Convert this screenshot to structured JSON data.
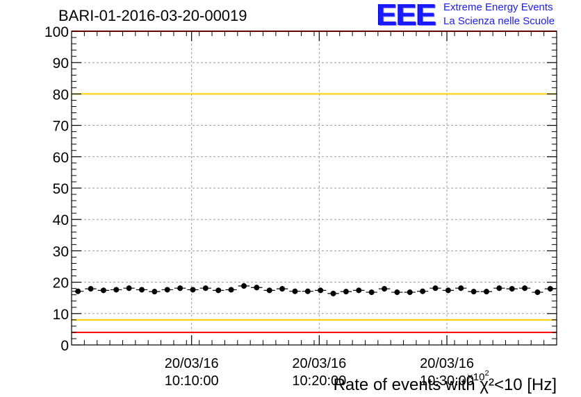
{
  "header": {
    "run_title": "BARI-01-2016-03-20-00019"
  },
  "logo": {
    "mark": "EEE",
    "line1": "Extreme Energy Events",
    "line2": "La Scienza nelle Scuole"
  },
  "chart_data": {
    "type": "scatter",
    "title": "BARI-01-2016-03-20-00019",
    "xlabel": "Rate of events with χ²<10 [Hz]",
    "x_multiplier_label": "10^2",
    "ylabel": "",
    "ylim": [
      0,
      100
    ],
    "y_ticks": [
      "0",
      "10",
      "20",
      "30",
      "40",
      "50",
      "60",
      "70",
      "80",
      "90",
      "100"
    ],
    "x_ticks": [
      {
        "date": "20/03/16",
        "time": "10:10:00",
        "index": 9.4
      },
      {
        "date": "20/03/16",
        "time": "10:20:00",
        "index": 19.4
      },
      {
        "date": "20/03/16",
        "time": "10:30:00",
        "index": 29.4
      }
    ],
    "grid": true,
    "reference_lines": [
      {
        "y": 100,
        "color": "#ff0000"
      },
      {
        "y": 80,
        "color": "#ffcc00"
      },
      {
        "y": 8,
        "color": "#ffcc00"
      },
      {
        "y": 4,
        "color": "#ff0000"
      }
    ],
    "marker_color": "#000000",
    "series": [
      {
        "values": [
          17.1,
          17.9,
          17.4,
          17.6,
          18.1,
          17.6,
          17.0,
          17.6,
          18.1,
          17.6,
          18.1,
          17.4,
          17.6,
          18.8,
          18.3,
          17.4,
          17.9,
          17.1,
          17.1,
          17.4,
          16.4,
          17.0,
          17.4,
          16.8,
          17.9,
          16.8,
          16.8,
          17.1,
          18.1,
          17.4,
          18.1,
          17.0,
          17.0,
          18.1,
          17.9,
          18.1,
          16.8,
          17.9
        ]
      }
    ]
  }
}
